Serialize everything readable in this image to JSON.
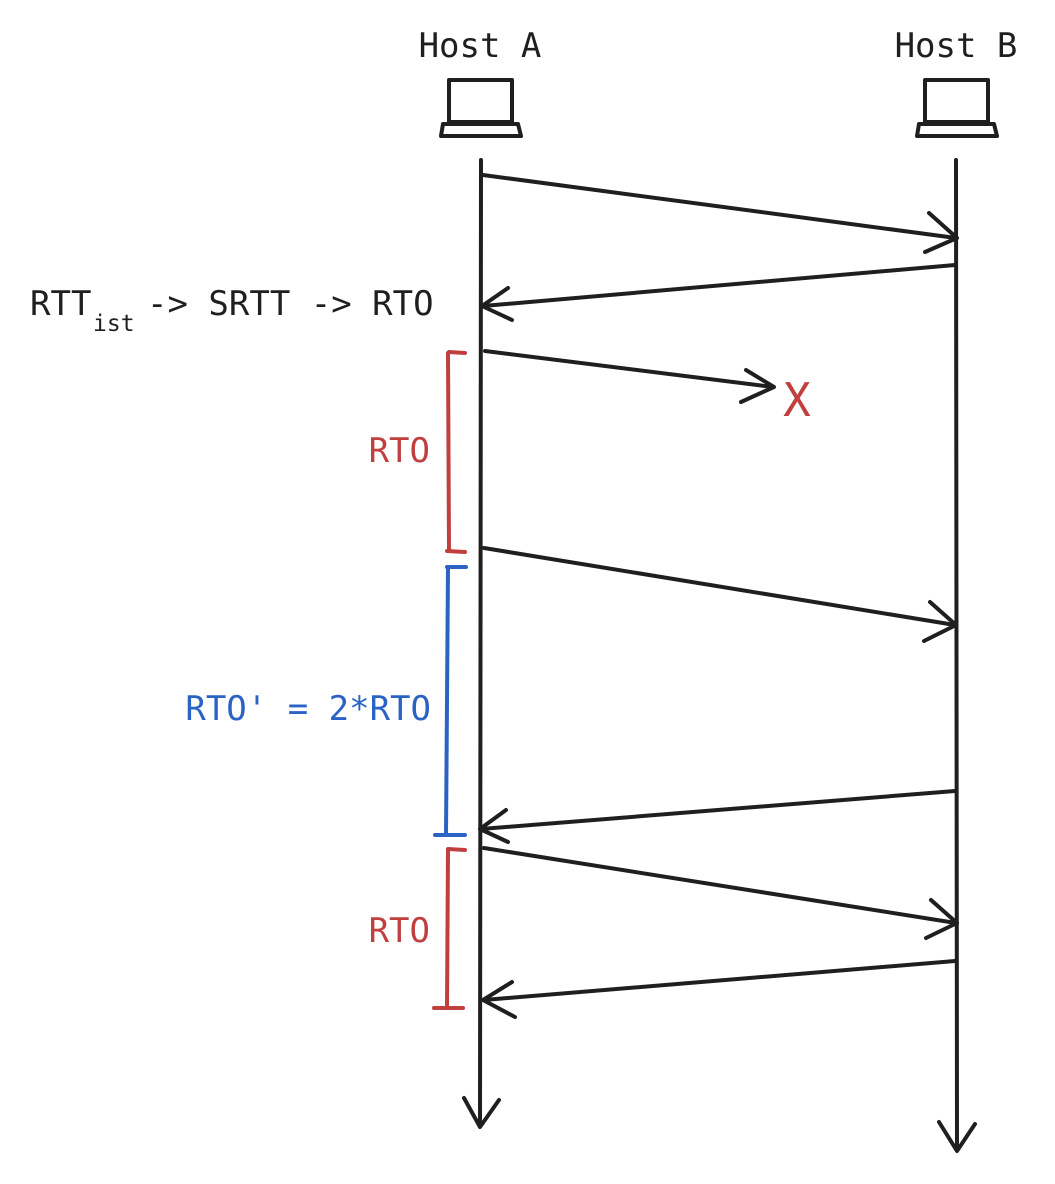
{
  "hosts": {
    "a": {
      "label": "Host A",
      "icon": "laptop-icon"
    },
    "b": {
      "label": "Host B",
      "icon": "laptop-icon"
    }
  },
  "formula": {
    "rtt": "RTT",
    "subscript": "ist",
    "chain": "-> SRTT -> RTO"
  },
  "intervals": {
    "first_rto": "RTO",
    "doubled_rto": "RTO' = 2*RTO",
    "third_rto": "RTO"
  },
  "loss_mark": "X",
  "colors": {
    "ink": "#1f1f1f",
    "rto_red": "#c0403f",
    "rto_blue": "#2b63c4"
  }
}
